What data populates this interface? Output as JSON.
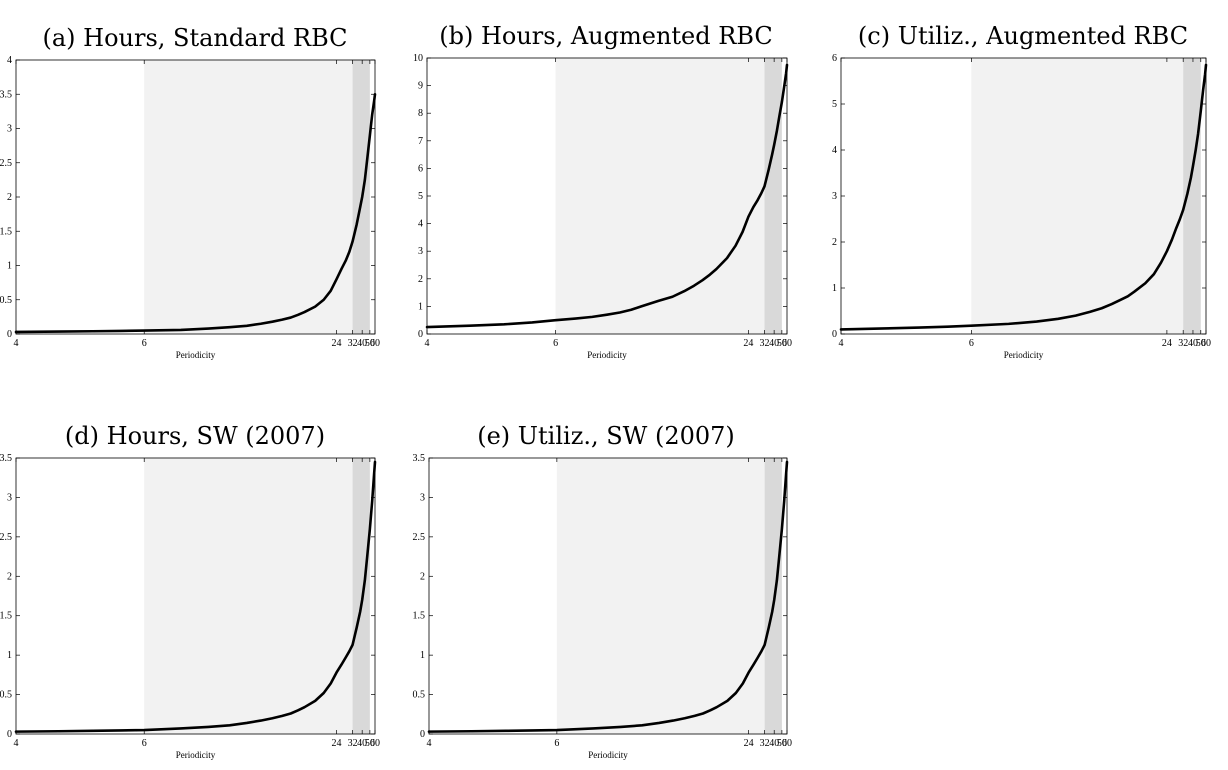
{
  "chart_data": [
    {
      "type": "line",
      "title": "(a) Hours, Standard RBC",
      "xlabel": "Periodicity",
      "ylabel": "",
      "xscale": "reciprocal",
      "xlim": [
        4,
        60
      ],
      "xticks": [
        4,
        6,
        24,
        32,
        40,
        50,
        60
      ],
      "ylim": [
        0,
        4
      ],
      "yticks": [
        0,
        0.5,
        1,
        1.5,
        2,
        2.5,
        3,
        3.5,
        4
      ],
      "ytick_labels": [
        "0",
        "0.5",
        "1",
        "1.5",
        "2",
        "2.5",
        "3",
        "3.5",
        "4"
      ],
      "shaded_bands": [
        {
          "from": 6,
          "to": 32,
          "color": "#f2f2f2"
        },
        {
          "from": 32,
          "to": 50,
          "color": "#d9d9d9"
        }
      ],
      "line_color": "#000000",
      "grid": false,
      "series": [
        {
          "x": [
            4,
            4.5,
            5,
            5.5,
            6,
            7,
            8,
            9,
            10,
            11,
            12,
            13,
            14,
            15,
            16,
            18,
            20,
            22,
            24,
            26,
            28,
            30,
            32,
            35,
            38,
            40,
            43,
            46,
            50,
            54,
            58,
            60
          ],
          "values": [
            0.03,
            0.035,
            0.04,
            0.045,
            0.05,
            0.06,
            0.08,
            0.1,
            0.12,
            0.15,
            0.18,
            0.21,
            0.24,
            0.28,
            0.32,
            0.4,
            0.5,
            0.63,
            0.8,
            0.95,
            1.07,
            1.2,
            1.35,
            1.6,
            1.85,
            2.0,
            2.25,
            2.55,
            2.9,
            3.2,
            3.4,
            3.5
          ]
        }
      ]
    },
    {
      "type": "line",
      "title": "(b) Hours, Augmented RBC",
      "xlabel": "Periodicity",
      "ylabel": "",
      "xscale": "reciprocal",
      "xlim": [
        4,
        60
      ],
      "xticks": [
        4,
        6,
        24,
        32,
        40,
        50,
        60
      ],
      "ylim": [
        0,
        10
      ],
      "yticks": [
        0,
        1,
        2,
        3,
        4,
        5,
        6,
        7,
        8,
        9,
        10
      ],
      "ytick_labels": [
        "0",
        "1",
        "2",
        "3",
        "4",
        "5",
        "6",
        "7",
        "8",
        "9",
        "10"
      ],
      "shaded_bands": [
        {
          "from": 6,
          "to": 32,
          "color": "#f2f2f2"
        },
        {
          "from": 32,
          "to": 50,
          "color": "#d9d9d9"
        }
      ],
      "line_color": "#000000",
      "grid": false,
      "series": [
        {
          "x": [
            4,
            4.5,
            5,
            5.5,
            6,
            6.5,
            7,
            7.5,
            8,
            8.5,
            9,
            10,
            11,
            12,
            13,
            14,
            15,
            16,
            18,
            20,
            22,
            24,
            26,
            28,
            30,
            32,
            35,
            38,
            40,
            43,
            46,
            50,
            54,
            58,
            60
          ],
          "values": [
            0.25,
            0.3,
            0.35,
            0.42,
            0.5,
            0.56,
            0.62,
            0.7,
            0.78,
            0.88,
            1.0,
            1.2,
            1.35,
            1.55,
            1.75,
            1.95,
            2.15,
            2.35,
            2.75,
            3.2,
            3.7,
            4.25,
            4.6,
            4.85,
            5.1,
            5.35,
            5.95,
            6.5,
            6.85,
            7.35,
            7.85,
            8.4,
            8.95,
            9.45,
            9.75
          ]
        }
      ]
    },
    {
      "type": "line",
      "title": "(c) Utiliz., Augmented RBC",
      "xlabel": "Periodicity",
      "ylabel": "",
      "xscale": "reciprocal",
      "xlim": [
        4,
        60
      ],
      "xticks": [
        4,
        6,
        24,
        32,
        40,
        50,
        60
      ],
      "ylim": [
        0,
        6
      ],
      "yticks": [
        0,
        1,
        2,
        3,
        4,
        5,
        6
      ],
      "ytick_labels": [
        "0",
        "1",
        "2",
        "3",
        "4",
        "5",
        "6"
      ],
      "shaded_bands": [
        {
          "from": 6,
          "to": 32,
          "color": "#f2f2f2"
        },
        {
          "from": 32,
          "to": 50,
          "color": "#d9d9d9"
        }
      ],
      "line_color": "#000000",
      "grid": false,
      "series": [
        {
          "x": [
            4,
            4.5,
            5,
            5.5,
            6,
            7,
            8,
            9,
            10,
            11,
            12,
            13,
            14,
            15,
            16,
            18,
            20,
            22,
            24,
            26,
            28,
            30,
            32,
            35,
            38,
            40,
            43,
            46,
            50,
            54,
            58,
            60
          ],
          "values": [
            0.1,
            0.12,
            0.14,
            0.16,
            0.18,
            0.22,
            0.27,
            0.33,
            0.4,
            0.48,
            0.56,
            0.65,
            0.74,
            0.82,
            0.92,
            1.1,
            1.3,
            1.55,
            1.8,
            2.05,
            2.3,
            2.5,
            2.7,
            3.05,
            3.4,
            3.65,
            4.0,
            4.35,
            4.85,
            5.3,
            5.65,
            5.85
          ]
        }
      ]
    },
    {
      "type": "line",
      "title": "(d) Hours, SW (2007)",
      "xlabel": "Periodicity",
      "ylabel": "",
      "xscale": "reciprocal",
      "xlim": [
        4,
        60
      ],
      "xticks": [
        4,
        6,
        24,
        32,
        40,
        50,
        60
      ],
      "ylim": [
        0,
        3.5
      ],
      "yticks": [
        0,
        0.5,
        1,
        1.5,
        2,
        2.5,
        3,
        3.5
      ],
      "ytick_labels": [
        "0",
        "0.5",
        "1",
        "1.5",
        "2",
        "2.5",
        "3",
        "3.5"
      ],
      "shaded_bands": [
        {
          "from": 6,
          "to": 32,
          "color": "#f2f2f2"
        },
        {
          "from": 32,
          "to": 50,
          "color": "#d9d9d9"
        }
      ],
      "line_color": "#000000",
      "grid": false,
      "series": [
        {
          "x": [
            4,
            4.5,
            5,
            5.5,
            6,
            7,
            8,
            9,
            10,
            11,
            12,
            13,
            14,
            15,
            16,
            18,
            20,
            22,
            24,
            26,
            28,
            30,
            32,
            35,
            38,
            40,
            43,
            46,
            50,
            54,
            58,
            60
          ],
          "values": [
            0.03,
            0.035,
            0.04,
            0.045,
            0.05,
            0.07,
            0.09,
            0.11,
            0.14,
            0.17,
            0.2,
            0.23,
            0.26,
            0.3,
            0.34,
            0.42,
            0.52,
            0.64,
            0.78,
            0.88,
            0.97,
            1.05,
            1.13,
            1.35,
            1.55,
            1.7,
            1.95,
            2.25,
            2.6,
            2.95,
            3.3,
            3.45
          ]
        }
      ]
    },
    {
      "type": "line",
      "title": "(e) Utiliz., SW (2007)",
      "xlabel": "Periodicity",
      "ylabel": "",
      "xscale": "reciprocal",
      "xlim": [
        4,
        60
      ],
      "xticks": [
        4,
        6,
        24,
        32,
        40,
        50,
        60
      ],
      "ylim": [
        0,
        3.5
      ],
      "yticks": [
        0,
        0.5,
        1,
        1.5,
        2,
        2.5,
        3,
        3.5
      ],
      "ytick_labels": [
        "0",
        "0.5",
        "1",
        "1.5",
        "2",
        "2.5",
        "3",
        "3.5"
      ],
      "shaded_bands": [
        {
          "from": 6,
          "to": 32,
          "color": "#f2f2f2"
        },
        {
          "from": 32,
          "to": 50,
          "color": "#d9d9d9"
        }
      ],
      "line_color": "#000000",
      "grid": false,
      "series": [
        {
          "x": [
            4,
            4.5,
            5,
            5.5,
            6,
            7,
            8,
            9,
            10,
            11,
            12,
            13,
            14,
            15,
            16,
            18,
            20,
            22,
            24,
            26,
            28,
            30,
            32,
            35,
            38,
            40,
            43,
            46,
            50,
            54,
            58,
            60
          ],
          "values": [
            0.03,
            0.035,
            0.04,
            0.045,
            0.05,
            0.07,
            0.09,
            0.11,
            0.14,
            0.17,
            0.2,
            0.23,
            0.26,
            0.3,
            0.34,
            0.42,
            0.52,
            0.64,
            0.78,
            0.88,
            0.97,
            1.05,
            1.13,
            1.35,
            1.55,
            1.7,
            1.95,
            2.25,
            2.6,
            2.95,
            3.3,
            3.45
          ]
        }
      ]
    }
  ]
}
